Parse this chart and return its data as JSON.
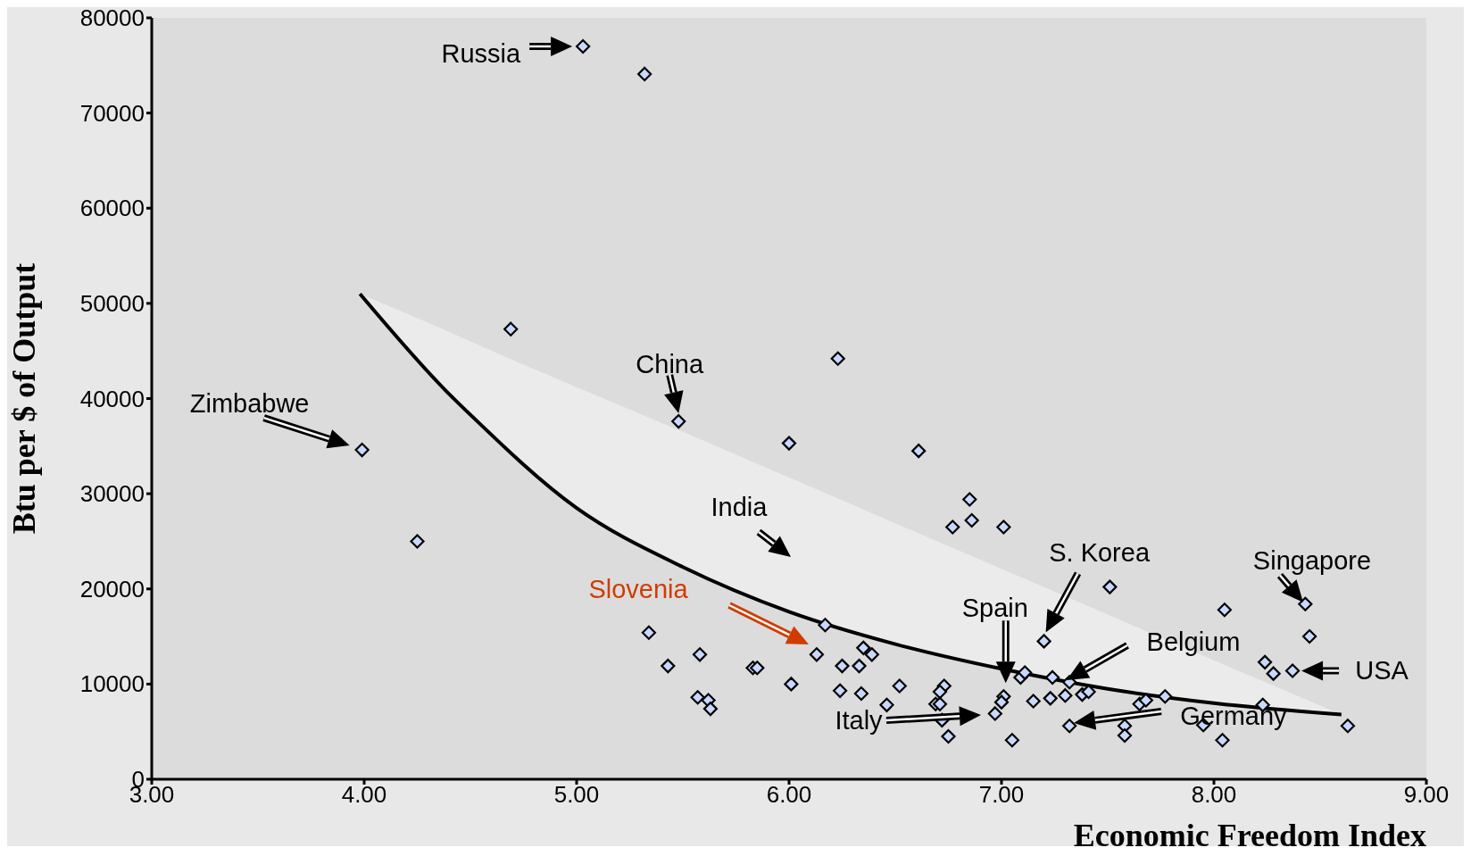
{
  "chart_data": {
    "type": "scatter",
    "xlabel": "Economic Freedom Index",
    "ylabel": "Btu per $ of Output",
    "xlim": [
      3,
      9
    ],
    "ylim": [
      0,
      80000
    ],
    "xticks": [
      {
        "value": 3,
        "label": "3.00"
      },
      {
        "value": 4,
        "label": "4.00"
      },
      {
        "value": 5,
        "label": "5.00"
      },
      {
        "value": 6,
        "label": "6.00"
      },
      {
        "value": 7,
        "label": "7.00"
      },
      {
        "value": 8,
        "label": "8.00"
      },
      {
        "value": 9,
        "label": "9.00"
      }
    ],
    "yticks": [
      0,
      10000,
      20000,
      30000,
      40000,
      50000,
      60000,
      70000,
      80000
    ],
    "grid": false,
    "series": [
      {
        "type": "line",
        "color": "#000000",
        "marker": "none",
        "x": [
          3.98,
          4.39,
          4.5,
          5.0,
          5.5,
          6.0,
          6.5,
          7.0,
          7.5,
          8.0,
          8.6
        ],
        "values": [
          51000,
          40700,
          38300,
          28500,
          22300,
          17600,
          14200,
          11600,
          9500,
          8000,
          6800
        ],
        "lower": [
          51000,
          40700,
          38300,
          28500,
          22300,
          17600,
          14200,
          11600,
          9500,
          8000,
          6800
        ],
        "upper": [
          51000,
          47100,
          46000,
          41200,
          36500,
          31700,
          26900,
          22100,
          17300,
          12500,
          6800
        ]
      },
      {
        "color": "#c8d8ff",
        "marker": "diamond",
        "x": [
          5.03,
          5.32,
          4.69,
          6.23,
          5.48,
          3.99,
          6.0,
          6.61,
          4.25,
          6.85,
          6.86,
          6.77,
          7.01,
          7.51,
          8.05,
          8.43,
          8.45,
          7.2,
          5.34,
          5.58,
          5.43,
          5.83,
          5.85,
          6.13,
          6.25,
          6.35,
          6.39,
          6.33,
          6.17,
          6.01,
          5.57,
          5.62,
          5.63,
          6.24,
          6.34,
          6.52,
          6.46,
          6.73,
          6.71,
          6.69,
          6.71,
          6.72,
          6.75,
          6.97,
          7.01,
          7.0,
          7.05,
          7.09,
          7.11,
          7.15,
          7.23,
          7.24,
          7.3,
          7.32,
          7.38,
          7.41,
          7.32,
          7.58,
          7.58,
          7.65,
          7.68,
          7.77,
          7.95,
          8.04,
          8.24,
          8.28,
          8.37,
          8.23,
          8.63
        ],
        "values": [
          77000,
          74100,
          47300,
          44200,
          37600,
          34600,
          35300,
          34500,
          25000,
          29400,
          27200,
          26500,
          26500,
          20200,
          17800,
          18400,
          15000,
          14500,
          15400,
          13100,
          11900,
          11700,
          11700,
          13100,
          11900,
          13800,
          13100,
          11900,
          16200,
          10000,
          8600,
          8300,
          7400,
          9300,
          9000,
          9800,
          7800,
          9800,
          9200,
          7900,
          7900,
          6200,
          4500,
          6900,
          8700,
          8100,
          4100,
          10700,
          11200,
          8200,
          8500,
          10700,
          8800,
          10200,
          8900,
          9200,
          5600,
          5600,
          4600,
          7900,
          8300,
          8700,
          5700,
          4100,
          12300,
          11100,
          11400,
          7800,
          5600
        ]
      }
    ],
    "annotations": [
      {
        "text": "Russia",
        "x": 5.03,
        "y": 77000
      },
      {
        "text": "China",
        "x": 5.48,
        "y": 37600
      },
      {
        "text": "Zimbabwe",
        "x": 3.99,
        "y": 34600
      },
      "India",
      "Slovenia",
      {
        "text": "Spain",
        "x": 7.02,
        "y": 10100
      },
      {
        "text": "S. Korea",
        "x": 7.2,
        "y": 14500
      },
      "Belgium",
      "Italy",
      "Germany",
      {
        "text": "Singapore",
        "x": 8.42,
        "y": 18600
      },
      {
        "text": "USA",
        "x": 8.37,
        "y": 11400
      }
    ]
  }
}
